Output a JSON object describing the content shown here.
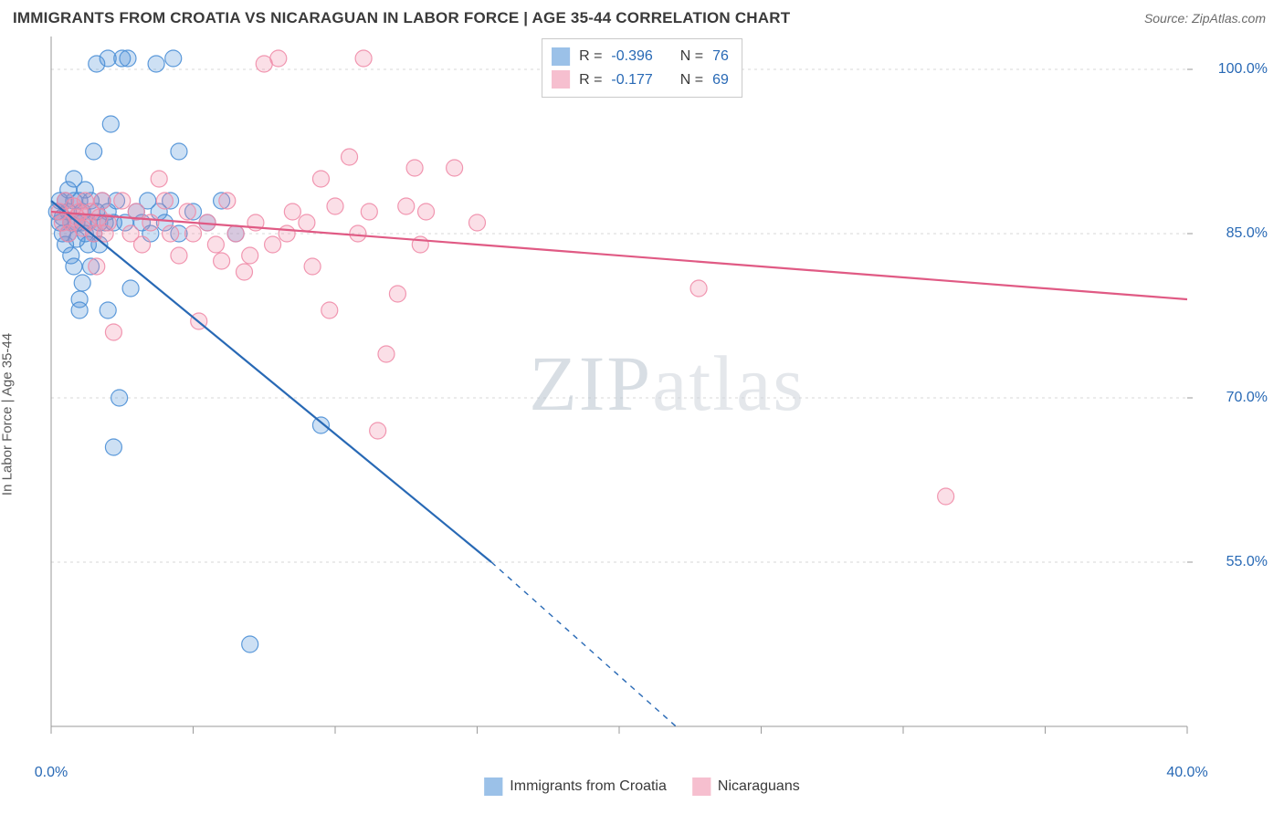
{
  "header": {
    "title": "IMMIGRANTS FROM CROATIA VS NICARAGUAN IN LABOR FORCE | AGE 35-44 CORRELATION CHART",
    "source": "Source: ZipAtlas.com"
  },
  "watermark": {
    "part1": "ZIP",
    "part2": "atlas"
  },
  "chart": {
    "type": "scatter-with-regression",
    "ylabel": "In Labor Force | Age 35-44",
    "background_color": "#ffffff",
    "grid_color": "#d7d7d7",
    "axis_color": "#9a9a9a",
    "tick_label_color": "#2869b5",
    "xlim": [
      0,
      40
    ],
    "ylim": [
      40,
      103
    ],
    "xticks": [
      0,
      40
    ],
    "xtick_labels": [
      "0.0%",
      "40.0%"
    ],
    "xtick_minor": [
      5,
      10,
      15,
      20,
      25,
      30,
      35
    ],
    "yticks": [
      55,
      70,
      85,
      100
    ],
    "ytick_labels": [
      "55.0%",
      "70.0%",
      "85.0%",
      "100.0%"
    ],
    "marker_radius": 9,
    "marker_fill_opacity": 0.28,
    "marker_stroke_opacity": 0.9,
    "marker_stroke_width": 1.2,
    "line_width": 2.2,
    "series": [
      {
        "key": "croatia",
        "label": "Immigrants from Croatia",
        "color": "#4b8fd6",
        "line_color": "#2869b5",
        "R": "-0.396",
        "N": "76",
        "regression": {
          "x1": 0,
          "y1": 88.0,
          "x2": 15.5,
          "y2": 55.0,
          "dash_extend_to_x": 22.0,
          "dash_extend_to_y": 40.0
        },
        "points": [
          [
            0.2,
            87
          ],
          [
            0.3,
            88
          ],
          [
            0.3,
            86
          ],
          [
            0.4,
            85
          ],
          [
            0.4,
            86.5
          ],
          [
            0.5,
            88
          ],
          [
            0.5,
            84
          ],
          [
            0.6,
            87
          ],
          [
            0.6,
            89
          ],
          [
            0.6,
            85
          ],
          [
            0.7,
            86
          ],
          [
            0.7,
            83
          ],
          [
            0.8,
            88
          ],
          [
            0.8,
            90
          ],
          [
            0.8,
            82
          ],
          [
            0.9,
            86
          ],
          [
            0.9,
            84.5
          ],
          [
            1.0,
            88
          ],
          [
            1.0,
            79
          ],
          [
            1.0,
            78
          ],
          [
            1.1,
            87
          ],
          [
            1.1,
            86
          ],
          [
            1.1,
            80.5
          ],
          [
            1.2,
            85
          ],
          [
            1.2,
            89
          ],
          [
            1.3,
            86
          ],
          [
            1.3,
            84
          ],
          [
            1.4,
            88
          ],
          [
            1.4,
            82
          ],
          [
            1.5,
            85
          ],
          [
            1.5,
            92.5
          ],
          [
            1.6,
            87
          ],
          [
            1.6,
            100.5
          ],
          [
            1.7,
            86
          ],
          [
            1.7,
            84
          ],
          [
            1.8,
            88
          ],
          [
            1.9,
            86
          ],
          [
            2.0,
            101
          ],
          [
            2.0,
            87
          ],
          [
            2.0,
            78
          ],
          [
            2.1,
            95
          ],
          [
            2.2,
            86
          ],
          [
            2.2,
            65.5
          ],
          [
            2.3,
            88
          ],
          [
            2.4,
            70
          ],
          [
            2.5,
            101
          ],
          [
            2.6,
            86
          ],
          [
            2.7,
            101
          ],
          [
            2.8,
            80
          ],
          [
            3.0,
            87
          ],
          [
            3.2,
            86
          ],
          [
            3.4,
            88
          ],
          [
            3.5,
            85
          ],
          [
            3.7,
            100.5
          ],
          [
            3.8,
            87
          ],
          [
            4.0,
            86
          ],
          [
            4.3,
            101
          ],
          [
            4.2,
            88
          ],
          [
            4.5,
            85
          ],
          [
            4.5,
            92.5
          ],
          [
            5.0,
            87
          ],
          [
            5.5,
            86
          ],
          [
            6.0,
            88
          ],
          [
            6.5,
            85
          ],
          [
            7.0,
            47.5
          ],
          [
            9.5,
            67.5
          ]
        ]
      },
      {
        "key": "nicaragua",
        "label": "Nicaraguans",
        "color": "#f08ca8",
        "line_color": "#e05a84",
        "R": "-0.177",
        "N": "69",
        "regression": {
          "x1": 0,
          "y1": 87.0,
          "x2": 40,
          "y2": 79.0
        },
        "points": [
          [
            0.3,
            87
          ],
          [
            0.4,
            86
          ],
          [
            0.5,
            88
          ],
          [
            0.6,
            85
          ],
          [
            0.7,
            86
          ],
          [
            0.8,
            87.5
          ],
          [
            0.9,
            86.5
          ],
          [
            1.0,
            87
          ],
          [
            1.1,
            85.5
          ],
          [
            1.2,
            88
          ],
          [
            1.3,
            86
          ],
          [
            1.4,
            87
          ],
          [
            1.5,
            85
          ],
          [
            1.6,
            82
          ],
          [
            1.7,
            86.5
          ],
          [
            1.8,
            88
          ],
          [
            1.9,
            85
          ],
          [
            2.0,
            86
          ],
          [
            2.2,
            76
          ],
          [
            2.5,
            88
          ],
          [
            2.8,
            85
          ],
          [
            3.0,
            87
          ],
          [
            3.2,
            84
          ],
          [
            3.5,
            86
          ],
          [
            3.8,
            90
          ],
          [
            4.0,
            88
          ],
          [
            4.2,
            85
          ],
          [
            4.5,
            83
          ],
          [
            4.8,
            87
          ],
          [
            5.0,
            85
          ],
          [
            5.2,
            77
          ],
          [
            5.5,
            86
          ],
          [
            5.8,
            84
          ],
          [
            6.0,
            82.5
          ],
          [
            6.2,
            88
          ],
          [
            6.5,
            85
          ],
          [
            6.8,
            81.5
          ],
          [
            7.0,
            83
          ],
          [
            7.2,
            86
          ],
          [
            7.5,
            100.5
          ],
          [
            7.8,
            84
          ],
          [
            8.0,
            101
          ],
          [
            8.3,
            85
          ],
          [
            8.5,
            87
          ],
          [
            9.0,
            86
          ],
          [
            9.2,
            82
          ],
          [
            9.5,
            90
          ],
          [
            9.8,
            78
          ],
          [
            10.0,
            87.5
          ],
          [
            10.5,
            92
          ],
          [
            10.8,
            85
          ],
          [
            11.0,
            101
          ],
          [
            11.2,
            87
          ],
          [
            11.5,
            67
          ],
          [
            12.5,
            87.5
          ],
          [
            12.8,
            91
          ],
          [
            13.0,
            84
          ],
          [
            13.2,
            87
          ],
          [
            14.2,
            91
          ],
          [
            11.8,
            74
          ],
          [
            12.2,
            79.5
          ],
          [
            15.0,
            86
          ],
          [
            22.8,
            80
          ],
          [
            31.5,
            61
          ]
        ]
      }
    ],
    "legend_stats": {
      "r_label": "R =",
      "n_label": "N ="
    }
  }
}
